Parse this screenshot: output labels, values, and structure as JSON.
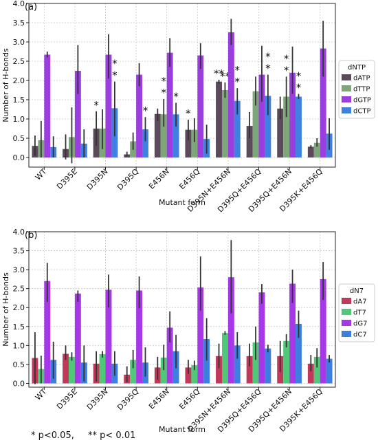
{
  "footnote": {
    "p05": "* p<0.05,",
    "p01": "** p< 0.01"
  },
  "chart_data": [
    {
      "type": "bar",
      "panel_label": "(a)",
      "xlabel": "Mutant form",
      "ylabel": "Number of H-bonds",
      "ylim": [
        -0.25,
        4.0
      ],
      "yticks": [
        "0.0",
        "0.5",
        "1.0",
        "1.5",
        "2.0",
        "2.5",
        "3.0",
        "3.5",
        "4.0"
      ],
      "grid": true,
      "legend_title": "dNTP",
      "legend_position": "right",
      "categories": [
        "WT",
        "D395E",
        "D395N",
        "D395Q",
        "E456N",
        "E456Q",
        "D395N+E456N",
        "D395Q+E456Q",
        "D395Q+E456N",
        "D395K+E456Q"
      ],
      "series": [
        {
          "name": "dATP",
          "color": "#5b4a5a",
          "values": [
            0.3,
            0.22,
            0.75,
            0.08,
            1.13,
            0.72,
            1.97,
            0.82,
            1.27,
            0.28
          ],
          "err_low": [
            0.05,
            -0.05,
            0.3,
            0.03,
            0.95,
            0.45,
            1.92,
            0.5,
            1.0,
            0.24
          ],
          "err_high": [
            0.57,
            0.6,
            1.2,
            0.15,
            1.27,
            0.98,
            2.02,
            1.18,
            1.58,
            0.32
          ],
          "stars": [
            "",
            "",
            "*",
            "",
            "",
            "*",
            "**",
            "",
            "",
            ""
          ]
        },
        {
          "name": "dTTP",
          "color": "#7fa57a",
          "values": [
            0.45,
            0.53,
            0.75,
            0.42,
            1.12,
            0.72,
            1.75,
            1.72,
            1.58,
            0.38
          ],
          "err_low": [
            0.0,
            -0.15,
            0.22,
            0.2,
            0.8,
            0.4,
            1.55,
            1.35,
            1.05,
            0.28
          ],
          "err_high": [
            0.95,
            1.3,
            1.25,
            0.65,
            1.52,
            1.02,
            1.95,
            2.1,
            2.1,
            0.5
          ],
          "stars": [
            "",
            "",
            "",
            "",
            "*\n*",
            "",
            "**",
            "",
            "*\n*",
            ""
          ]
        },
        {
          "name": "dGTP",
          "color": "#9b3ee0",
          "values": [
            2.67,
            2.25,
            2.67,
            2.15,
            2.72,
            2.65,
            3.25,
            2.15,
            2.2,
            2.83
          ],
          "err_low": [
            2.6,
            1.65,
            2.05,
            1.85,
            2.35,
            2.3,
            2.92,
            1.45,
            1.65,
            2.1
          ],
          "err_high": [
            2.75,
            2.92,
            3.2,
            2.45,
            3.1,
            2.97,
            3.6,
            2.9,
            2.88,
            3.55
          ],
          "stars": [
            "",
            "",
            "",
            "",
            "",
            "",
            "",
            "",
            "",
            ""
          ]
        },
        {
          "name": "dCTP",
          "color": "#3f80e0",
          "values": [
            0.27,
            0.36,
            1.28,
            0.73,
            1.12,
            0.48,
            1.47,
            1.6,
            1.58,
            0.62
          ],
          "err_low": [
            0.0,
            0.0,
            0.55,
            0.42,
            0.8,
            0.1,
            1.12,
            1.1,
            1.52,
            0.2
          ],
          "err_high": [
            0.55,
            0.73,
            1.97,
            1.05,
            1.42,
            0.85,
            1.8,
            2.15,
            1.65,
            1.02
          ],
          "stars": [
            "",
            "",
            "*\n*",
            "*",
            "*",
            "",
            "*\n*",
            "*\n*",
            "*\n*",
            ""
          ]
        }
      ]
    },
    {
      "type": "bar",
      "panel_label": "(b)",
      "xlabel": "Mutant form",
      "ylabel": "Number of H-bonds",
      "ylim": [
        -0.1,
        4.0
      ],
      "yticks": [
        "0.0",
        "0.5",
        "1.0",
        "1.5",
        "2.0",
        "2.5",
        "3.0",
        "3.5",
        "4.0"
      ],
      "grid": true,
      "legend_title": "dN7",
      "legend_position": "right",
      "categories": [
        "WT",
        "D395E",
        "D395N",
        "D395Q",
        "E456N",
        "E456Q",
        "D395N+E456N",
        "D395Q+E456Q",
        "D395Q+E456N",
        "D395K+E456Q"
      ],
      "series": [
        {
          "name": "dA7",
          "color": "#c0395a",
          "values": [
            0.67,
            0.78,
            0.52,
            0.23,
            0.42,
            0.42,
            0.72,
            0.72,
            0.72,
            0.52
          ],
          "err_low": [
            -0.02,
            0.62,
            0.05,
            0.03,
            0.1,
            0.25,
            0.4,
            0.45,
            0.3,
            0.32
          ],
          "err_high": [
            1.35,
            1.0,
            0.85,
            0.45,
            0.7,
            0.62,
            1.05,
            1.05,
            1.12,
            0.75
          ]
        },
        {
          "name": "dT7",
          "color": "#50c878",
          "values": [
            0.38,
            0.7,
            0.77,
            0.62,
            0.68,
            0.48,
            1.33,
            1.08,
            1.12,
            0.7
          ],
          "err_low": [
            0.0,
            0.6,
            0.68,
            0.4,
            0.35,
            0.35,
            1.28,
            0.62,
            0.95,
            0.42
          ],
          "err_high": [
            0.73,
            0.82,
            0.85,
            0.88,
            1.02,
            0.6,
            1.38,
            1.5,
            1.3,
            0.93
          ]
        },
        {
          "name": "dG7",
          "color": "#a638e8",
          "values": [
            2.7,
            2.37,
            2.47,
            2.45,
            1.47,
            2.53,
            2.8,
            2.4,
            2.63,
            2.75
          ],
          "err_low": [
            2.15,
            2.15,
            2.0,
            1.98,
            1.08,
            1.92,
            1.85,
            2.1,
            2.12,
            2.2
          ],
          "err_high": [
            3.18,
            2.45,
            2.87,
            2.82,
            1.9,
            3.35,
            3.78,
            2.62,
            3.0,
            3.2
          ]
        },
        {
          "name": "dC7",
          "color": "#3c7fe0",
          "values": [
            0.62,
            0.55,
            0.52,
            0.55,
            0.85,
            1.17,
            1.0,
            0.92,
            1.57,
            0.65
          ],
          "err_low": [
            0.12,
            0.05,
            0.2,
            0.18,
            0.4,
            0.6,
            0.65,
            0.82,
            1.2,
            0.55
          ],
          "err_high": [
            1.1,
            1.0,
            0.85,
            0.95,
            1.28,
            1.72,
            1.35,
            1.02,
            1.92,
            0.75
          ]
        }
      ]
    }
  ]
}
